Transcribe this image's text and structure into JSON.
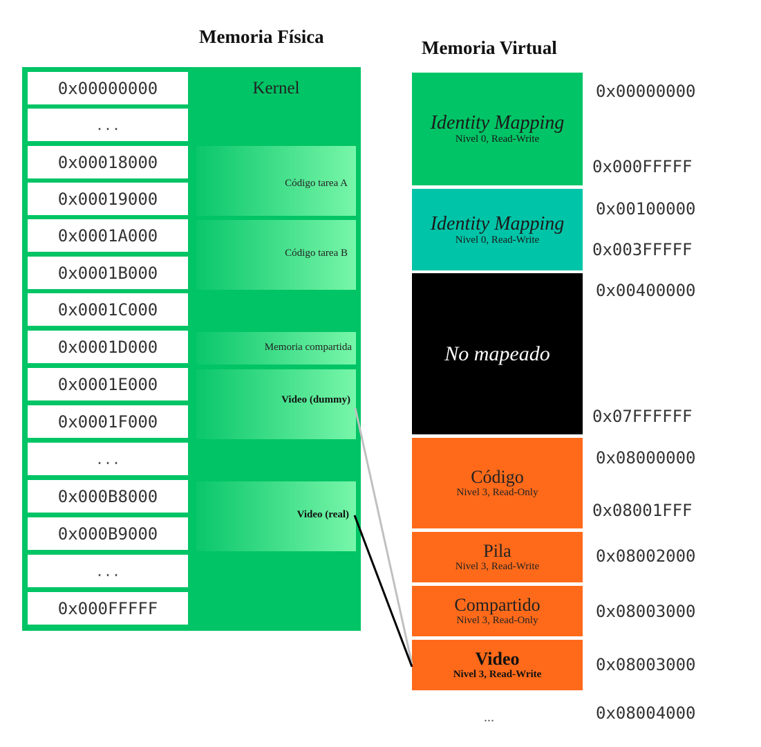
{
  "physical": {
    "title": "Memoria Física",
    "kernel_label": "Kernel",
    "addresses": [
      "0x00000000",
      "...",
      "0x00018000",
      "0x00019000",
      "0x0001A000",
      "0x0001B000",
      "0x0001C000",
      "0x0001D000",
      "0x0001E000",
      "0x0001F000",
      "...",
      "0x000B8000",
      "0x000B9000",
      "...",
      "0x000FFFFF"
    ],
    "regions": {
      "codigo_a": "Código tarea A",
      "codigo_b": "Código tarea B",
      "compartida": "Memoria compartida",
      "video_dummy": "Video (dummy)",
      "video_real": "Video (real)"
    }
  },
  "virtual": {
    "title": "Memoria Virtual",
    "blocks": {
      "identity1": {
        "title": "Identity Mapping",
        "subtitle": "Nivel 0, Read-Write"
      },
      "identity2": {
        "title": "Identity Mapping",
        "subtitle": "Nivel 0, Read-Write"
      },
      "unmapped": {
        "title": "No mapeado"
      },
      "codigo": {
        "title": "Código",
        "subtitle": "Nivel 3, Read-Only"
      },
      "pila": {
        "title": "Pila",
        "subtitle": "Nivel 3, Read-Write"
      },
      "compartido": {
        "title": "Compartido",
        "subtitle": "Nivel 3, Read-Only"
      },
      "video": {
        "title": "Video",
        "subtitle": "Nivel 3, Read-Write"
      }
    },
    "addresses": [
      "0x00000000",
      "0x000FFFFF",
      "0x00100000",
      "0x003FFFFF",
      "0x00400000",
      "0x07FFFFFF",
      "0x08000000",
      "0x08001FFF",
      "0x08002000",
      "0x08003000",
      "0x08003000",
      "0x08004000"
    ],
    "trailing": "..."
  },
  "colors": {
    "physical_green": "#00c465",
    "identity_green": "#00c465",
    "identity_teal": "#00c4a8",
    "unmapped_black": "#000000",
    "user_orange": "#ff6a1a",
    "dummy_line": "#c0c0c0",
    "real_line": "#000000"
  }
}
